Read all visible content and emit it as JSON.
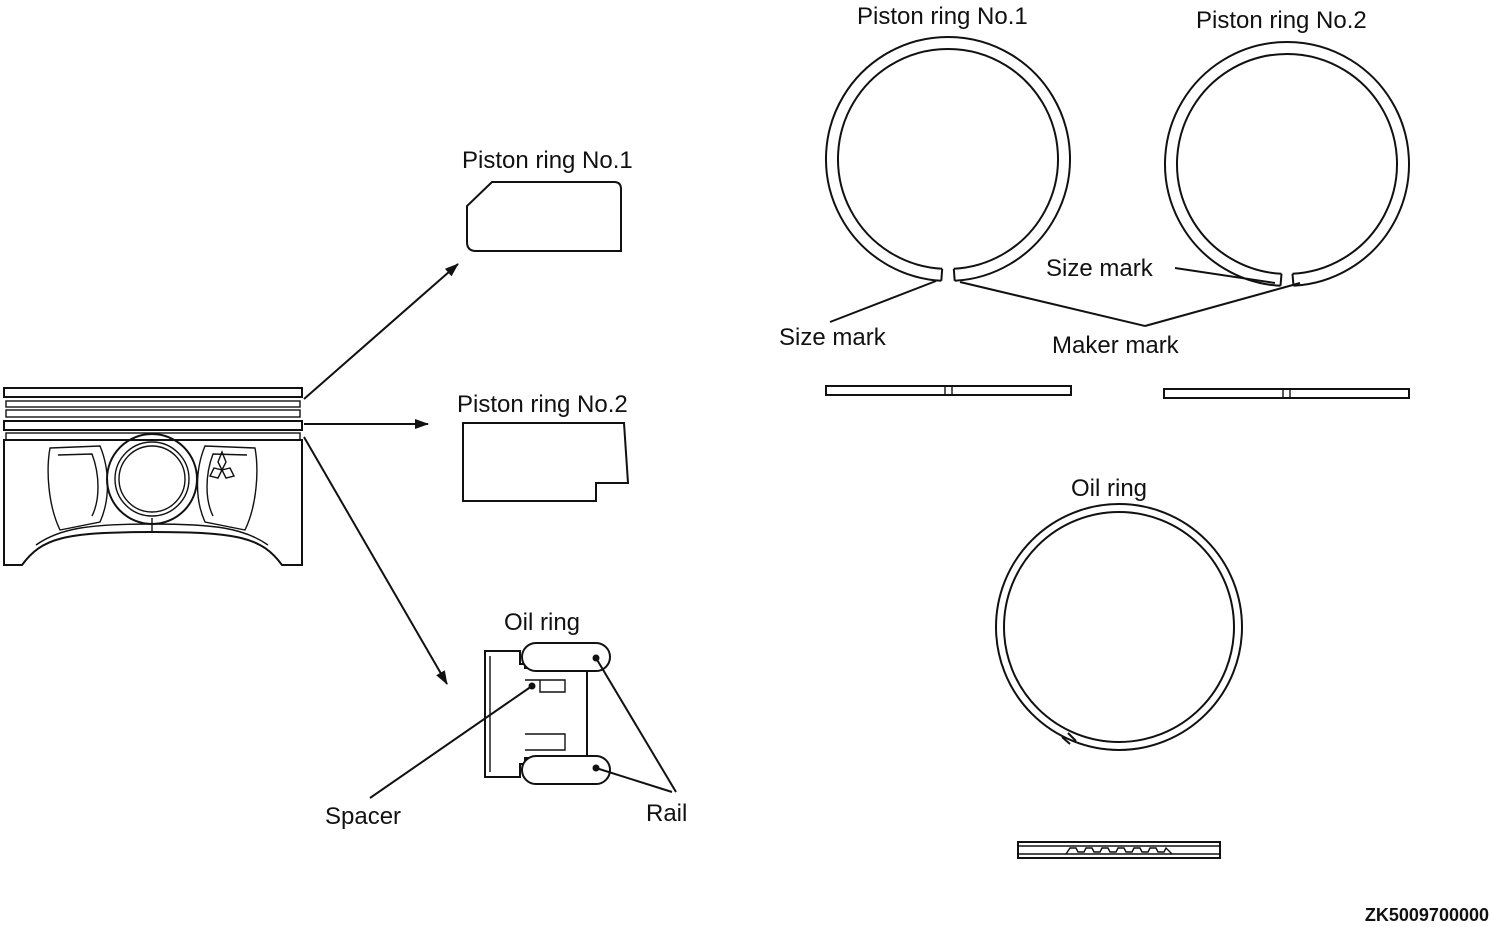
{
  "labels": {
    "left_ring1": "Piston ring No.1",
    "left_ring2": "Piston ring No.2",
    "left_oil": "Oil ring",
    "spacer": "Spacer",
    "rail": "Rail",
    "right_ring1": "Piston ring No.1",
    "right_ring2": "Piston ring No.2",
    "size_mark_1": "Size mark",
    "size_mark_2": "Size mark",
    "maker_mark": "Maker mark",
    "right_oil": "Oil ring"
  },
  "figure_code": "ZK5009700000"
}
